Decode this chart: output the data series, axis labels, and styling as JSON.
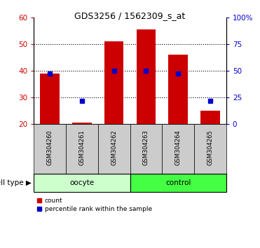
{
  "title": "GDS3256 / 1562309_s_at",
  "samples": [
    "GSM304260",
    "GSM304261",
    "GSM304262",
    "GSM304263",
    "GSM304264",
    "GSM304265"
  ],
  "group_labels": [
    "oocyte",
    "control"
  ],
  "bar_bottom": 20,
  "bar_tops": [
    39,
    20.5,
    51,
    55.5,
    46,
    25
  ],
  "percentile_values": [
    47.5,
    22,
    50,
    50,
    47.5,
    22
  ],
  "ylim_left": [
    20,
    60
  ],
  "ylim_right": [
    0,
    100
  ],
  "yticks_left": [
    20,
    30,
    40,
    50,
    60
  ],
  "yticks_right": [
    0,
    25,
    50,
    75,
    100
  ],
  "ytick_right_labels": [
    "0",
    "25",
    "50",
    "75",
    "100%"
  ],
  "grid_yticks": [
    30,
    40,
    50
  ],
  "bar_color": "#cc0000",
  "percentile_color": "#0000cc",
  "oocyte_color": "#ccffcc",
  "control_color": "#44ff44",
  "tick_bg_color": "#cccccc",
  "cell_type_label": "cell type",
  "legend_count": "count",
  "legend_percentile": "percentile rank within the sample"
}
